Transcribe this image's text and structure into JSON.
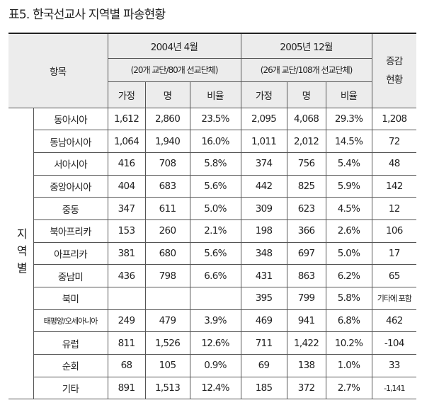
{
  "header": {
    "title": "표5. 한국선교사 지역별 파송현황"
  },
  "table": {
    "corner": "항목",
    "periods": [
      {
        "label": "2004년 4월",
        "sub": "(20개 교단/80개 선교단체)"
      },
      {
        "label": "2005년 12월",
        "sub": "(26개 교단/108개 선교단체)"
      }
    ],
    "change": [
      "증감",
      "현황"
    ],
    "columns": [
      "가정",
      "명",
      "비율",
      "가정",
      "명",
      "비율"
    ],
    "side_label": "지역별",
    "rows": [
      [
        "동아시아",
        "1,612",
        "2,860",
        "23.5%",
        "2,095",
        "4,068",
        "29.3%",
        "1,208"
      ],
      [
        "동남아시아",
        "1,064",
        "1,940",
        "16.0%",
        "1,011",
        "2,012",
        "14.5%",
        "72"
      ],
      [
        "서아시아",
        "416",
        "708",
        "5.8%",
        "374",
        "756",
        "5.4%",
        "48"
      ],
      [
        "중앙아시아",
        "404",
        "683",
        "5.6%",
        "442",
        "825",
        "5.9%",
        "142"
      ],
      [
        "중동",
        "347",
        "611",
        "5.0%",
        "309",
        "623",
        "4.5%",
        "12"
      ],
      [
        "북아프리카",
        "153",
        "260",
        "2.1%",
        "198",
        "366",
        "2.6%",
        "106"
      ],
      [
        "아프리카",
        "381",
        "680",
        "5.6%",
        "348",
        "697",
        "5.0%",
        "17"
      ],
      [
        "중남미",
        "436",
        "798",
        "6.6%",
        "431",
        "863",
        "6.2%",
        "65"
      ],
      [
        "북미",
        null,
        null,
        null,
        "395",
        "799",
        "5.8%",
        "기타에 포함"
      ],
      [
        "태평양/오세아니아",
        "249",
        "479",
        "3.9%",
        "469",
        "941",
        "6.8%",
        "462"
      ],
      [
        "유럽",
        "811",
        "1,526",
        "12.6%",
        "711",
        "1,422",
        "10.2%",
        "-104"
      ],
      [
        "순회",
        "68",
        "105",
        "0.9%",
        "69",
        "138",
        "1.0%",
        "33"
      ],
      [
        "기타",
        "891",
        "1,513",
        "12.4%",
        "185",
        "372",
        "2.7%",
        "-1,141"
      ]
    ]
  }
}
